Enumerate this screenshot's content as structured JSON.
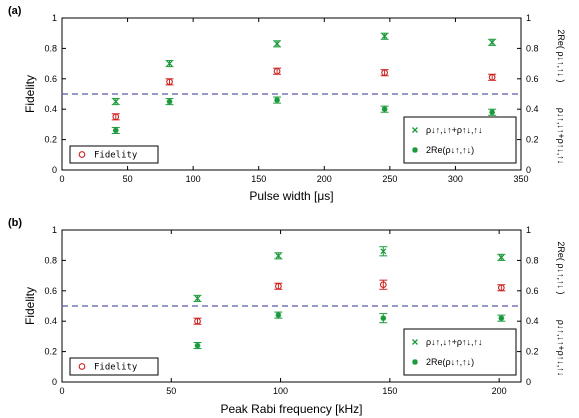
{
  "chart_data": [
    {
      "type": "scatter",
      "panel_label": "(a)",
      "xlabel": "Pulse width [μs]",
      "ylabel": "Fidelity",
      "y2label_top": "2Re( ρ↓↑,↑↓ )",
      "y2label_bottom": "ρ↓↑,↓↑+ρ↑↓,↑↓",
      "xlim": [
        0,
        350
      ],
      "ylim": [
        0,
        1
      ],
      "xticks": [
        "0",
        "50",
        "100",
        "150",
        "200",
        "250",
        "300",
        "350"
      ],
      "yticks": [
        "0",
        "0.2",
        "0.4",
        "0.6",
        "0.8",
        "1"
      ],
      "threshold": 0.5,
      "legend_position": "lower-right",
      "fidelity_legend_position": "lower-left",
      "colors": {
        "fidelity": "#cc2222",
        "green": "#1a9a3a",
        "threshold": "#5a5aa8"
      },
      "series": [
        {
          "name": "Fidelity",
          "marker": "circle",
          "x": [
            41,
            82,
            164,
            246,
            328
          ],
          "y": [
            0.35,
            0.58,
            0.65,
            0.64,
            0.61
          ],
          "err": [
            0.02,
            0.02,
            0.02,
            0.02,
            0.02
          ]
        },
        {
          "name": "ρ↓↑,↓↑+ρ↑↓,↑↓",
          "marker": "cross",
          "x": [
            41,
            82,
            164,
            246,
            328
          ],
          "y": [
            0.45,
            0.7,
            0.83,
            0.88,
            0.84
          ],
          "err": [
            0.02,
            0.02,
            0.02,
            0.02,
            0.02
          ]
        },
        {
          "name": "2Re(ρ↓↑,↑↓)",
          "marker": "star",
          "x": [
            41,
            82,
            164,
            246,
            328
          ],
          "y": [
            0.26,
            0.45,
            0.46,
            0.4,
            0.38
          ],
          "err": [
            0.02,
            0.02,
            0.02,
            0.02,
            0.02
          ]
        }
      ]
    },
    {
      "type": "scatter",
      "panel_label": "(b)",
      "xlabel": "Peak Rabi frequency [kHz]",
      "ylabel": "Fidelity",
      "y2label_top": "2Re( ρ↓↑,↑↓ )",
      "y2label_bottom": "ρ↓↑,↓↑+ρ↑↓,↑↓",
      "xlim": [
        0,
        210
      ],
      "ylim": [
        0,
        1
      ],
      "xticks": [
        "0",
        "50",
        "100",
        "150",
        "200"
      ],
      "yticks": [
        "0",
        "0.2",
        "0.4",
        "0.6",
        "0.8",
        "1"
      ],
      "threshold": 0.5,
      "legend_position": "lower-right",
      "fidelity_legend_position": "lower-left",
      "colors": {
        "fidelity": "#cc2222",
        "green": "#1a9a3a",
        "threshold": "#5a5aa8"
      },
      "series": [
        {
          "name": "Fidelity",
          "marker": "circle",
          "x": [
            62,
            99,
            147,
            201
          ],
          "y": [
            0.4,
            0.63,
            0.64,
            0.62
          ],
          "err": [
            0.02,
            0.02,
            0.03,
            0.02
          ]
        },
        {
          "name": "ρ↓↑,↓↑+ρ↑↓,↑↓",
          "marker": "cross",
          "x": [
            62,
            99,
            147,
            201
          ],
          "y": [
            0.55,
            0.83,
            0.86,
            0.82
          ],
          "err": [
            0.02,
            0.02,
            0.03,
            0.02
          ]
        },
        {
          "name": "2Re(ρ↓↑,↑↓)",
          "marker": "star",
          "x": [
            62,
            99,
            147,
            201
          ],
          "y": [
            0.24,
            0.44,
            0.42,
            0.42
          ],
          "err": [
            0.02,
            0.02,
            0.03,
            0.02
          ]
        }
      ]
    }
  ]
}
